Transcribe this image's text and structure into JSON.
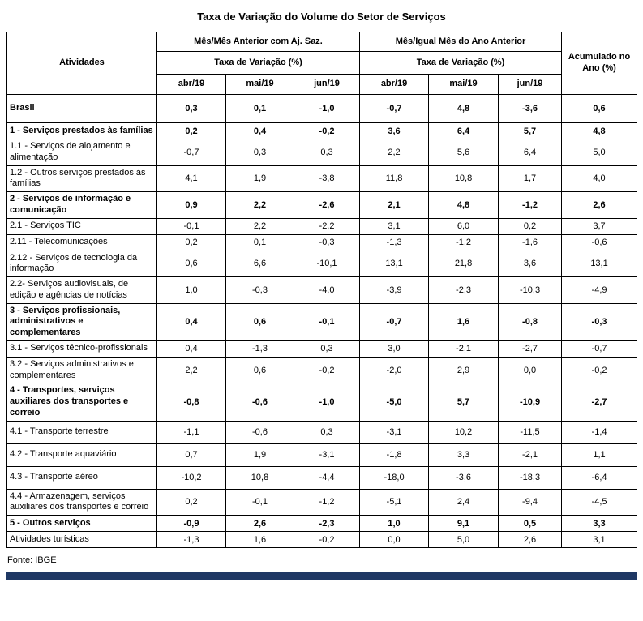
{
  "title": "Taxa de Variação do Volume do Setor de Serviços",
  "source": "Fonte: IBGE",
  "colors": {
    "bottom_bar": "#1f3864",
    "table_border": "#000000"
  },
  "chart_data": {
    "type": "table",
    "title": "Taxa de Variação do Volume do Setor de Serviços",
    "header": {
      "activities": "Atividades",
      "group1": [
        "Mês/Mês Anterior com Aj. Saz.",
        "Taxa de Variação (%)"
      ],
      "group2": [
        "Mês/Igual Mês do Ano Anterior",
        "Taxa de Variação (%)"
      ],
      "accumulated": "Acumulado no Ano (%)",
      "months": [
        "abr/19",
        "mai/19",
        "jun/19"
      ]
    },
    "rows": [
      {
        "label": "Brasil",
        "bold": true,
        "indent": 0,
        "mes_anterior": [
          "0,3",
          "0,1",
          "-1,0"
        ],
        "igual_mes_ano_anterior": [
          "-0,7",
          "4,8",
          "-3,6"
        ],
        "acumulado": "0,6"
      },
      {
        "label": "1 - Serviços prestados às famílias",
        "bold": true,
        "indent": 0,
        "mes_anterior": [
          "0,2",
          "0,4",
          "-0,2"
        ],
        "igual_mes_ano_anterior": [
          "3,6",
          "6,4",
          "5,7"
        ],
        "acumulado": "4,8"
      },
      {
        "label": "1.1 - Serviços de alojamento e alimentação",
        "bold": false,
        "indent": 1,
        "mes_anterior": [
          "-0,7",
          "0,3",
          "0,3"
        ],
        "igual_mes_ano_anterior": [
          "2,2",
          "5,6",
          "6,4"
        ],
        "acumulado": "5,0"
      },
      {
        "label": "1.2 - Outros serviços prestados às famílias",
        "bold": false,
        "indent": 1,
        "mes_anterior": [
          "4,1",
          "1,9",
          "-3,8"
        ],
        "igual_mes_ano_anterior": [
          "11,8",
          "10,8",
          "1,7"
        ],
        "acumulado": "4,0"
      },
      {
        "label": "2 - Serviços de informação e comunicação",
        "bold": true,
        "indent": 0,
        "mes_anterior": [
          "0,9",
          "2,2",
          "-2,6"
        ],
        "igual_mes_ano_anterior": [
          "2,1",
          "4,8",
          "-1,2"
        ],
        "acumulado": "2,6"
      },
      {
        "label": "2.1 - Serviços TIC",
        "bold": false,
        "indent": 1,
        "mes_anterior": [
          "-0,1",
          "2,2",
          "-2,2"
        ],
        "igual_mes_ano_anterior": [
          "3,1",
          "6,0",
          "0,2"
        ],
        "acumulado": "3,7"
      },
      {
        "label": "2.11 - Telecomunicações",
        "bold": false,
        "indent": 2,
        "mes_anterior": [
          "0,2",
          "0,1",
          "-0,3"
        ],
        "igual_mes_ano_anterior": [
          "-1,3",
          "-1,2",
          "-1,6"
        ],
        "acumulado": "-0,6"
      },
      {
        "label": "2.12 - Serviços de tecnologia da informação",
        "bold": false,
        "indent": 2,
        "mes_anterior": [
          "0,6",
          "6,6",
          "-10,1"
        ],
        "igual_mes_ano_anterior": [
          "13,1",
          "21,8",
          "3,6"
        ],
        "acumulado": "13,1"
      },
      {
        "label": "2.2- Serviços audiovisuais, de edição e agências de notícias",
        "bold": false,
        "indent": 1,
        "mes_anterior": [
          "1,0",
          "-0,3",
          "-4,0"
        ],
        "igual_mes_ano_anterior": [
          "-3,9",
          "-2,3",
          "-10,3"
        ],
        "acumulado": "-4,9"
      },
      {
        "label": "3 - Serviços profissionais, administrativos e complementares",
        "bold": true,
        "indent": 0,
        "mes_anterior": [
          "0,4",
          "0,6",
          "-0,1"
        ],
        "igual_mes_ano_anterior": [
          "-0,7",
          "1,6",
          "-0,8"
        ],
        "acumulado": "-0,3"
      },
      {
        "label": "3.1 - Serviços técnico-profissionais",
        "bold": false,
        "indent": 1,
        "mes_anterior": [
          "0,4",
          "-1,3",
          "0,3"
        ],
        "igual_mes_ano_anterior": [
          "3,0",
          "-2,1",
          "-2,7"
        ],
        "acumulado": "-0,7"
      },
      {
        "label": "3.2 - Serviços administrativos e complementares",
        "bold": false,
        "indent": 1,
        "mes_anterior": [
          "2,2",
          "0,6",
          "-0,2"
        ],
        "igual_mes_ano_anterior": [
          "-2,0",
          "2,9",
          "0,0"
        ],
        "acumulado": "-0,2"
      },
      {
        "label": "4 - Transportes, serviços auxiliares dos transportes e correio",
        "bold": true,
        "indent": 0,
        "mes_anterior": [
          "-0,8",
          "-0,6",
          "-1,0"
        ],
        "igual_mes_ano_anterior": [
          "-5,0",
          "5,7",
          "-10,9"
        ],
        "acumulado": "-2,7"
      },
      {
        "label": "4.1 - Transporte terrestre",
        "bold": false,
        "indent": 1,
        "mes_anterior": [
          "-1,1",
          "-0,6",
          "0,3"
        ],
        "igual_mes_ano_anterior": [
          "-3,1",
          "10,2",
          "-11,5"
        ],
        "acumulado": "-1,4"
      },
      {
        "label": "4.2 - Transporte aquaviário",
        "bold": false,
        "indent": 1,
        "mes_anterior": [
          "0,7",
          "1,9",
          "-3,1"
        ],
        "igual_mes_ano_anterior": [
          "-1,8",
          "3,3",
          "-2,1"
        ],
        "acumulado": "1,1"
      },
      {
        "label": "4.3 - Transporte aéreo",
        "bold": false,
        "indent": 1,
        "mes_anterior": [
          "-10,2",
          "10,8",
          "-4,4"
        ],
        "igual_mes_ano_anterior": [
          "-18,0",
          "-3,6",
          "-18,3"
        ],
        "acumulado": "-6,4"
      },
      {
        "label": "4.4 - Armazenagem, serviços auxiliares dos transportes e correio",
        "bold": false,
        "indent": 1,
        "mes_anterior": [
          "0,2",
          "-0,1",
          "-1,2"
        ],
        "igual_mes_ano_anterior": [
          "-5,1",
          "2,4",
          "-9,4"
        ],
        "acumulado": "-4,5"
      },
      {
        "label": "5 - Outros serviços",
        "bold": true,
        "indent": 0,
        "mes_anterior": [
          "-0,9",
          "2,6",
          "-2,3"
        ],
        "igual_mes_ano_anterior": [
          "1,0",
          "9,1",
          "0,5"
        ],
        "acumulado": "3,3"
      },
      {
        "label": "Atividades turísticas",
        "bold": false,
        "indent": 0,
        "mes_anterior": [
          "-1,3",
          "1,6",
          "-0,2"
        ],
        "igual_mes_ano_anterior": [
          "0,0",
          "5,0",
          "2,6"
        ],
        "acumulado": "3,1"
      }
    ]
  }
}
